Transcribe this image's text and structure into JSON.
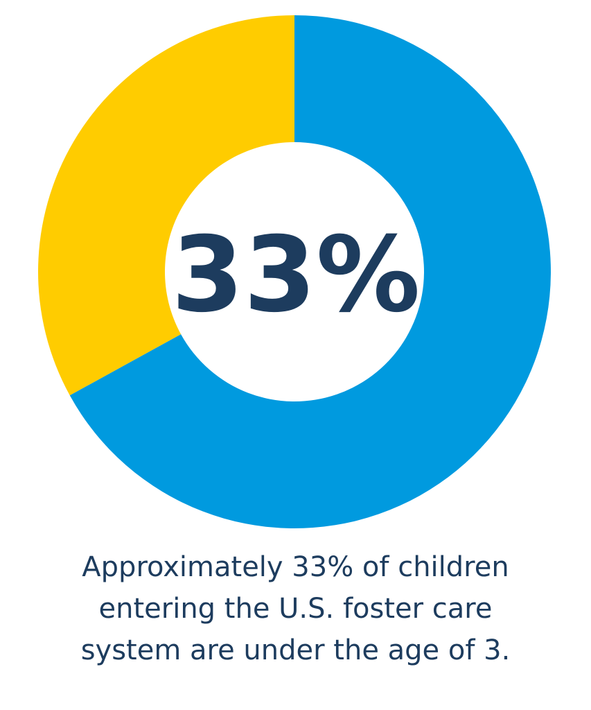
{
  "chart_data": {
    "type": "pie",
    "variant": "donut",
    "values": [
      33,
      67
    ],
    "colors": [
      "#FFCC00",
      "#009ADF"
    ],
    "start": "12 o'clock",
    "direction": "counterclockwise for the 33% slice",
    "center_label": "33%",
    "center_label_color": "#1D3C5E"
  },
  "caption": {
    "lines": [
      "Approximately 33% of children",
      "entering the U.S. foster care",
      "system are under the age of 3."
    ],
    "color": "#1D3C5E"
  }
}
